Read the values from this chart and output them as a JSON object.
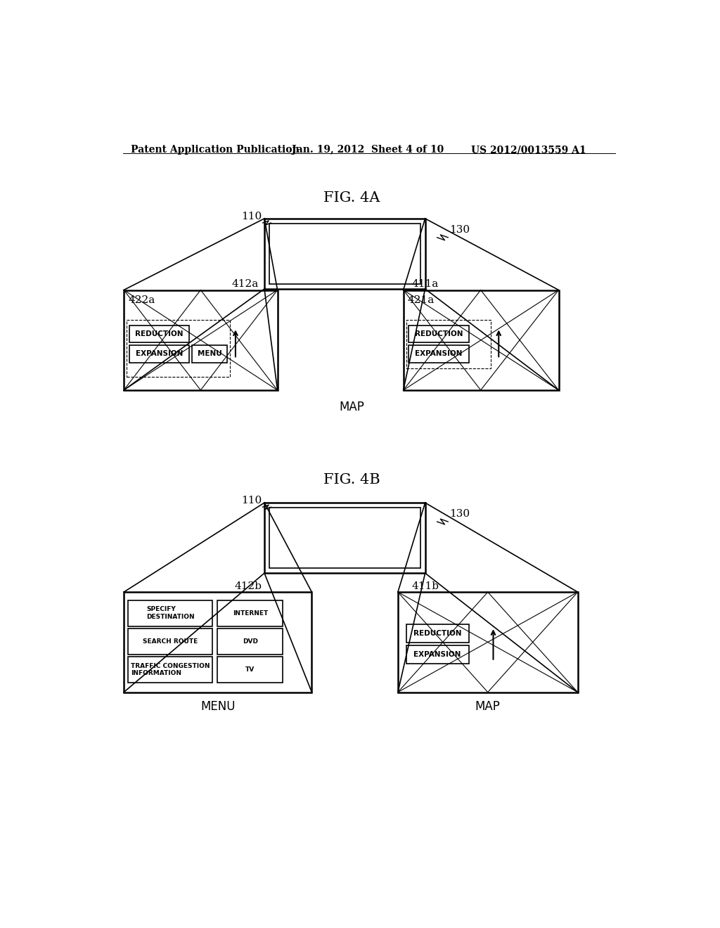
{
  "bg_color": "#ffffff",
  "header_left": "Patent Application Publication",
  "header_mid": "Jan. 19, 2012  Sheet 4 of 10",
  "header_right": "US 2012/0013559 A1",
  "fig4a_title": "FIG. 4A",
  "fig4b_title": "FIG. 4B",
  "label_110": "110",
  "label_130": "130",
  "label_412a": "412a",
  "label_411a": "411a",
  "label_422a": "422a",
  "label_421a": "421a",
  "label_412b": "412b",
  "label_411b": "411b",
  "label_map_4a": "MAP",
  "label_menu_4b": "MENU",
  "label_map_4b": "MAP"
}
